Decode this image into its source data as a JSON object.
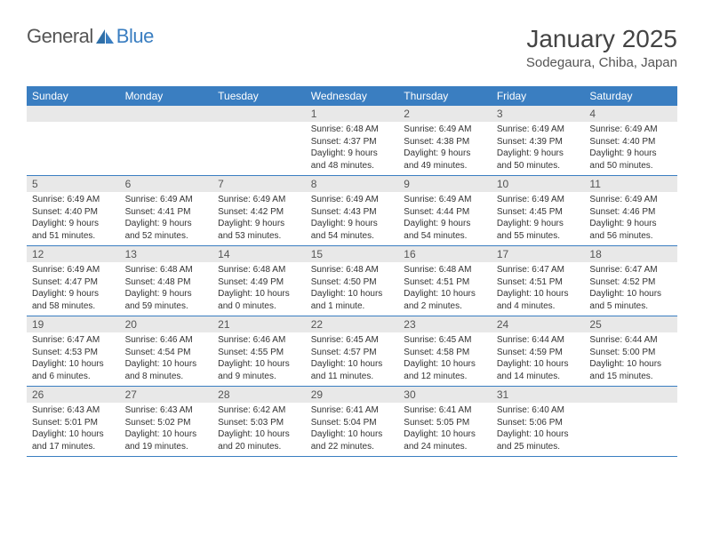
{
  "logo": {
    "text1": "General",
    "text2": "Blue"
  },
  "title": "January 2025",
  "location": "Sodegaura, Chiba, Japan",
  "dayNames": [
    "Sunday",
    "Monday",
    "Tuesday",
    "Wednesday",
    "Thursday",
    "Friday",
    "Saturday"
  ],
  "colors": {
    "headerBg": "#3a7ec1",
    "dayNumBg": "#e8e8e8",
    "text": "#333333"
  },
  "weeks": [
    [
      null,
      null,
      null,
      {
        "n": "1",
        "sr": "6:48 AM",
        "ss": "4:37 PM",
        "dl": "9 hours and 48 minutes."
      },
      {
        "n": "2",
        "sr": "6:49 AM",
        "ss": "4:38 PM",
        "dl": "9 hours and 49 minutes."
      },
      {
        "n": "3",
        "sr": "6:49 AM",
        "ss": "4:39 PM",
        "dl": "9 hours and 50 minutes."
      },
      {
        "n": "4",
        "sr": "6:49 AM",
        "ss": "4:40 PM",
        "dl": "9 hours and 50 minutes."
      }
    ],
    [
      {
        "n": "5",
        "sr": "6:49 AM",
        "ss": "4:40 PM",
        "dl": "9 hours and 51 minutes."
      },
      {
        "n": "6",
        "sr": "6:49 AM",
        "ss": "4:41 PM",
        "dl": "9 hours and 52 minutes."
      },
      {
        "n": "7",
        "sr": "6:49 AM",
        "ss": "4:42 PM",
        "dl": "9 hours and 53 minutes."
      },
      {
        "n": "8",
        "sr": "6:49 AM",
        "ss": "4:43 PM",
        "dl": "9 hours and 54 minutes."
      },
      {
        "n": "9",
        "sr": "6:49 AM",
        "ss": "4:44 PM",
        "dl": "9 hours and 54 minutes."
      },
      {
        "n": "10",
        "sr": "6:49 AM",
        "ss": "4:45 PM",
        "dl": "9 hours and 55 minutes."
      },
      {
        "n": "11",
        "sr": "6:49 AM",
        "ss": "4:46 PM",
        "dl": "9 hours and 56 minutes."
      }
    ],
    [
      {
        "n": "12",
        "sr": "6:49 AM",
        "ss": "4:47 PM",
        "dl": "9 hours and 58 minutes."
      },
      {
        "n": "13",
        "sr": "6:48 AM",
        "ss": "4:48 PM",
        "dl": "9 hours and 59 minutes."
      },
      {
        "n": "14",
        "sr": "6:48 AM",
        "ss": "4:49 PM",
        "dl": "10 hours and 0 minutes."
      },
      {
        "n": "15",
        "sr": "6:48 AM",
        "ss": "4:50 PM",
        "dl": "10 hours and 1 minute."
      },
      {
        "n": "16",
        "sr": "6:48 AM",
        "ss": "4:51 PM",
        "dl": "10 hours and 2 minutes."
      },
      {
        "n": "17",
        "sr": "6:47 AM",
        "ss": "4:51 PM",
        "dl": "10 hours and 4 minutes."
      },
      {
        "n": "18",
        "sr": "6:47 AM",
        "ss": "4:52 PM",
        "dl": "10 hours and 5 minutes."
      }
    ],
    [
      {
        "n": "19",
        "sr": "6:47 AM",
        "ss": "4:53 PM",
        "dl": "10 hours and 6 minutes."
      },
      {
        "n": "20",
        "sr": "6:46 AM",
        "ss": "4:54 PM",
        "dl": "10 hours and 8 minutes."
      },
      {
        "n": "21",
        "sr": "6:46 AM",
        "ss": "4:55 PM",
        "dl": "10 hours and 9 minutes."
      },
      {
        "n": "22",
        "sr": "6:45 AM",
        "ss": "4:57 PM",
        "dl": "10 hours and 11 minutes."
      },
      {
        "n": "23",
        "sr": "6:45 AM",
        "ss": "4:58 PM",
        "dl": "10 hours and 12 minutes."
      },
      {
        "n": "24",
        "sr": "6:44 AM",
        "ss": "4:59 PM",
        "dl": "10 hours and 14 minutes."
      },
      {
        "n": "25",
        "sr": "6:44 AM",
        "ss": "5:00 PM",
        "dl": "10 hours and 15 minutes."
      }
    ],
    [
      {
        "n": "26",
        "sr": "6:43 AM",
        "ss": "5:01 PM",
        "dl": "10 hours and 17 minutes."
      },
      {
        "n": "27",
        "sr": "6:43 AM",
        "ss": "5:02 PM",
        "dl": "10 hours and 19 minutes."
      },
      {
        "n": "28",
        "sr": "6:42 AM",
        "ss": "5:03 PM",
        "dl": "10 hours and 20 minutes."
      },
      {
        "n": "29",
        "sr": "6:41 AM",
        "ss": "5:04 PM",
        "dl": "10 hours and 22 minutes."
      },
      {
        "n": "30",
        "sr": "6:41 AM",
        "ss": "5:05 PM",
        "dl": "10 hours and 24 minutes."
      },
      {
        "n": "31",
        "sr": "6:40 AM",
        "ss": "5:06 PM",
        "dl": "10 hours and 25 minutes."
      },
      null
    ]
  ],
  "labels": {
    "sunrise": "Sunrise: ",
    "sunset": "Sunset: ",
    "daylight": "Daylight: "
  }
}
